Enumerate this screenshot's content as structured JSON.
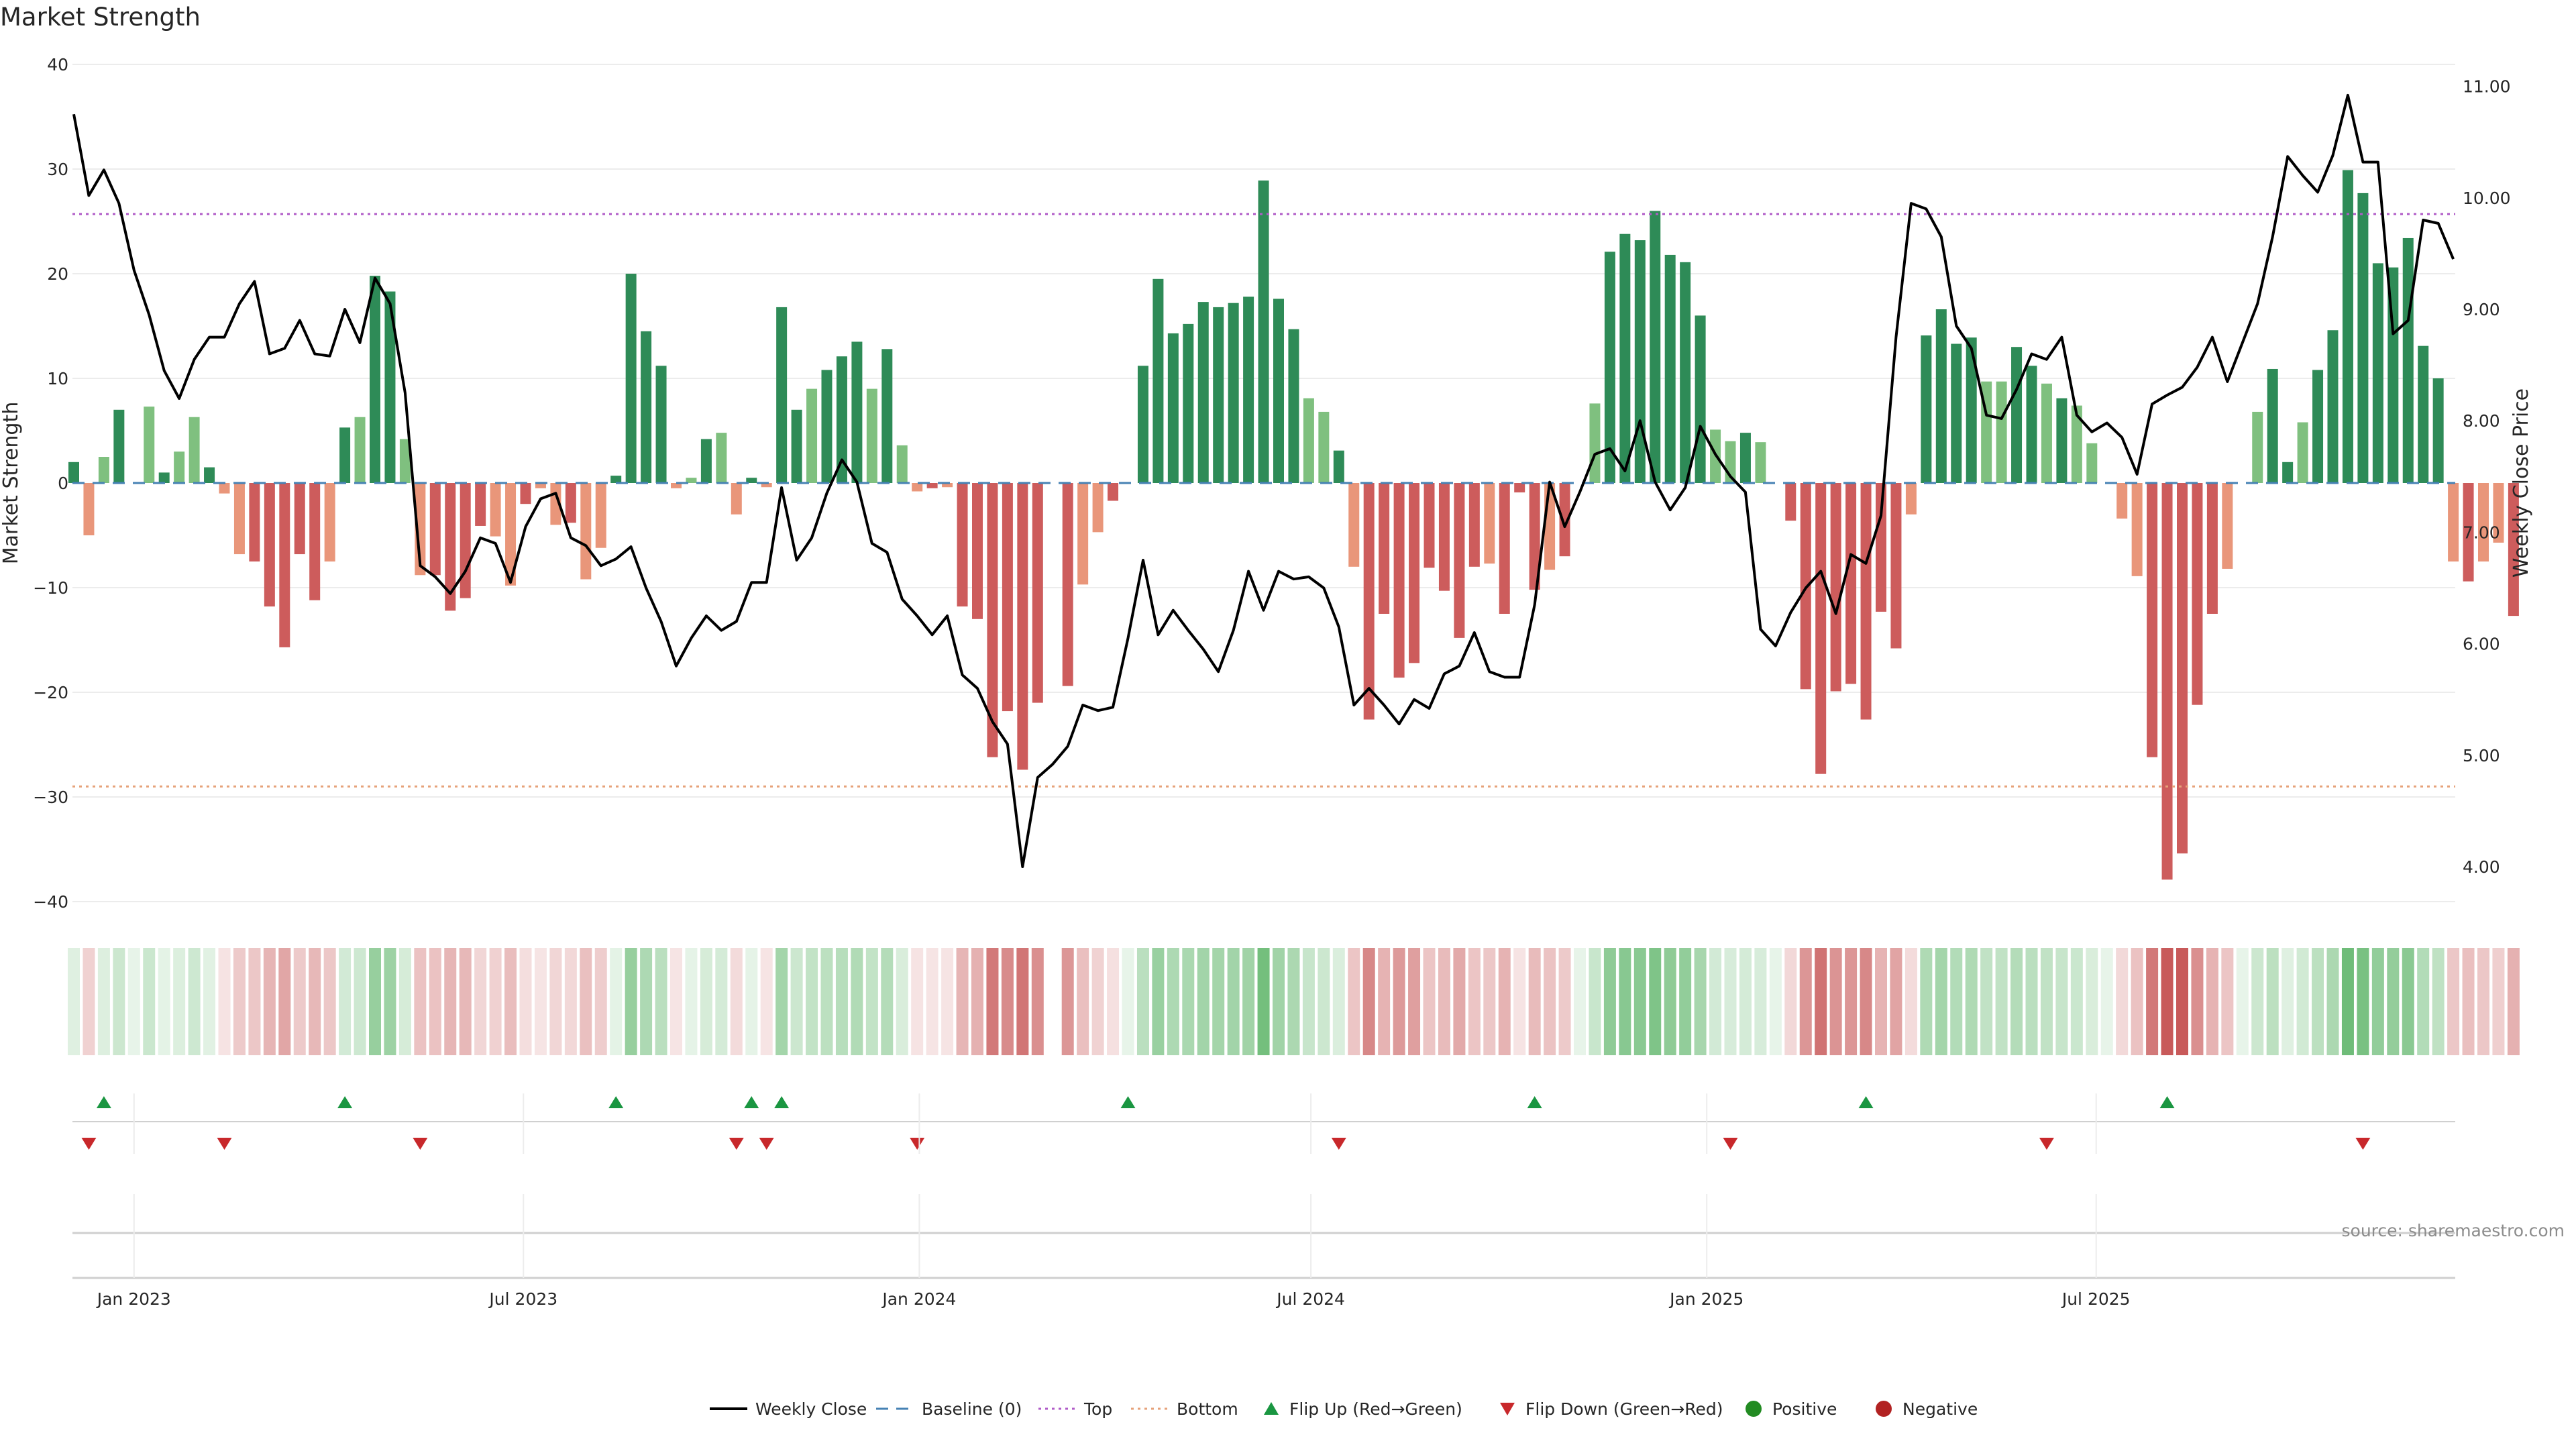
{
  "chart_data": {
    "type": "bar",
    "title": "Market Strength",
    "ylabel": "Market Strength",
    "y2label": "Weekly Close Price",
    "ylim": [
      -40,
      40
    ],
    "y2lim": [
      3.7,
      11.2
    ],
    "yticks": [
      "40",
      "30",
      "20",
      "10",
      "0",
      "−10",
      "−20",
      "−30",
      "−40"
    ],
    "y2ticks": [
      "11.00",
      "10.00",
      "9.00",
      "8.00",
      "7.00",
      "6.00",
      "5.00",
      "4.00"
    ],
    "x_start": "2022-12-04",
    "x_step_days": 7,
    "date_ticks": [
      {
        "label": "Jan 2023",
        "date": "2023-01-01"
      },
      {
        "label": "Jul 2023",
        "date": "2023-07-01"
      },
      {
        "label": "Jan 2024",
        "date": "2024-01-01"
      },
      {
        "label": "Jul 2024",
        "date": "2024-07-01"
      },
      {
        "label": "Jan 2025",
        "date": "2025-01-01"
      },
      {
        "label": "Jul 2025",
        "date": "2025-07-01"
      }
    ],
    "top_line": 25.7,
    "bottom_line": -29,
    "grid": true,
    "legend_position": "bottom-center",
    "strength": [
      2,
      -5,
      2.5,
      7,
      0,
      7.3,
      1,
      3,
      6.3,
      1.5,
      -1,
      -6.8,
      -7.5,
      -11.8,
      -15.7,
      -6.8,
      -11.2,
      -7.5,
      5.3,
      6.3,
      19.8,
      18.3,
      4.2,
      -8.8,
      -8.8,
      -12.2,
      -11,
      -4.1,
      -5.1,
      -9.8,
      -2,
      -0.5,
      -4,
      -3.8,
      -9.2,
      -6.2,
      0.7,
      20,
      14.5,
      11.2,
      -0.5,
      0.5,
      4.2,
      4.8,
      -3,
      0.5,
      -0.4,
      16.8,
      7,
      9,
      10.8,
      12.1,
      13.5,
      9,
      12.8,
      3.6,
      -0.8,
      -0.5,
      -0.4,
      -11.8,
      -13,
      -26.2,
      -21.8,
      -27.4,
      -21,
      0,
      -19.4,
      -9.7,
      -4.7,
      -1.7,
      0,
      11.2,
      19.5,
      14.3,
      15.2,
      17.3,
      16.8,
      17.2,
      17.8,
      28.9,
      17.6,
      14.7,
      8.1,
      6.8,
      3.1,
      -8,
      -22.6,
      -12.5,
      -18.6,
      -17.2,
      -8.1,
      -10.3,
      -14.8,
      -8,
      -7.7,
      -12.5,
      -0.9,
      -10.2,
      -8.3,
      -7,
      0,
      7.6,
      22.1,
      23.8,
      23.2,
      26,
      21.8,
      21.1,
      16,
      5.1,
      4,
      4.8,
      3.9,
      0,
      -3.6,
      -19.7,
      -27.8,
      -19.9,
      -19.2,
      -22.6,
      -12.3,
      -15.8,
      -3,
      14.1,
      16.6,
      13.3,
      13.9,
      9.7,
      9.7,
      13,
      11.2,
      9.5,
      8.1,
      7.4,
      3.8,
      0,
      -3.4,
      -8.9,
      -26.2,
      -37.9,
      -35.4,
      -21.2,
      -12.5,
      -8.2,
      0,
      6.8,
      10.9,
      2,
      5.8,
      10.8,
      14.6,
      29.9,
      27.7,
      21,
      20.6,
      23.4,
      13.1,
      10,
      -7.5,
      -9.4,
      -7.5,
      -5.7,
      -12.7
    ],
    "weekly_close": [
      10.75,
      10.02,
      10.25,
      9.95,
      9.35,
      8.95,
      8.45,
      8.2,
      8.55,
      8.75,
      8.75,
      9.05,
      9.25,
      8.6,
      8.65,
      8.9,
      8.6,
      8.58,
      9.0,
      8.7,
      9.28,
      9.05,
      8.25,
      6.7,
      6.6,
      6.45,
      6.65,
      6.95,
      6.9,
      6.55,
      7.05,
      7.3,
      7.35,
      6.95,
      6.88,
      6.7,
      6.76,
      6.87,
      6.5,
      6.2,
      5.8,
      6.05,
      6.25,
      6.12,
      6.2,
      6.55,
      6.55,
      7.4,
      6.75,
      6.95,
      7.35,
      7.65,
      7.45,
      6.9,
      6.82,
      6.4,
      6.25,
      6.08,
      6.25,
      5.72,
      5.6,
      5.3,
      5.1,
      4.0,
      4.8,
      4.92,
      5.08,
      5.45,
      5.4,
      5.43,
      6.05,
      6.75,
      6.08,
      6.3,
      6.12,
      5.95,
      5.75,
      6.12,
      6.65,
      6.3,
      6.65,
      6.58,
      6.6,
      6.5,
      6.15,
      5.45,
      5.6,
      5.45,
      5.28,
      5.5,
      5.42,
      5.73,
      5.8,
      6.1,
      5.75,
      5.7,
      5.7,
      6.35,
      7.45,
      7.05,
      7.36,
      7.7,
      7.75,
      7.55,
      8.0,
      7.45,
      7.2,
      7.4,
      7.95,
      7.7,
      7.5,
      7.36,
      6.13,
      5.98,
      6.28,
      6.5,
      6.65,
      6.27,
      6.8,
      6.72,
      7.15,
      8.75,
      9.95,
      9.9,
      9.65,
      8.85,
      8.65,
      8.05,
      8.02,
      8.28,
      8.6,
      8.55,
      8.75,
      8.05,
      7.9,
      7.98,
      7.85,
      7.52,
      8.15,
      8.23,
      8.3,
      8.48,
      8.75,
      8.35,
      8.7,
      9.05,
      9.65,
      10.37,
      10.2,
      10.05,
      10.38,
      10.92,
      10.32,
      10.32,
      8.78,
      8.9,
      9.8,
      9.77,
      9.45
    ],
    "flip_up_weeks": [
      2,
      18,
      36,
      45,
      47,
      70,
      97,
      119,
      139
    ],
    "flip_down_weeks": [
      1,
      10,
      23,
      44,
      46,
      56,
      84,
      110,
      131,
      152
    ],
    "legend": [
      "Weekly Close",
      "Baseline (0)",
      "Top",
      "Bottom",
      "Flip Up (Red→Green)",
      "Flip Down (Green→Red)",
      "Positive",
      "Negative"
    ],
    "source": "source: sharemaestro.com",
    "colors": {
      "green_strong": "#2e8b57",
      "green_light": "#7fc07f",
      "red_strong": "#cd5c5c",
      "red_light": "#e9967a",
      "price_line": "#000000",
      "baseline": "#4682b4",
      "top_line": "#b05cc8",
      "bottom_line": "#e6a27a",
      "flip_up": "#1a9641",
      "flip_down": "#c8282b",
      "positive": "#228b22",
      "negative": "#b22222",
      "heat_green": "#5fb56a",
      "heat_red": "#c85a5a"
    }
  }
}
